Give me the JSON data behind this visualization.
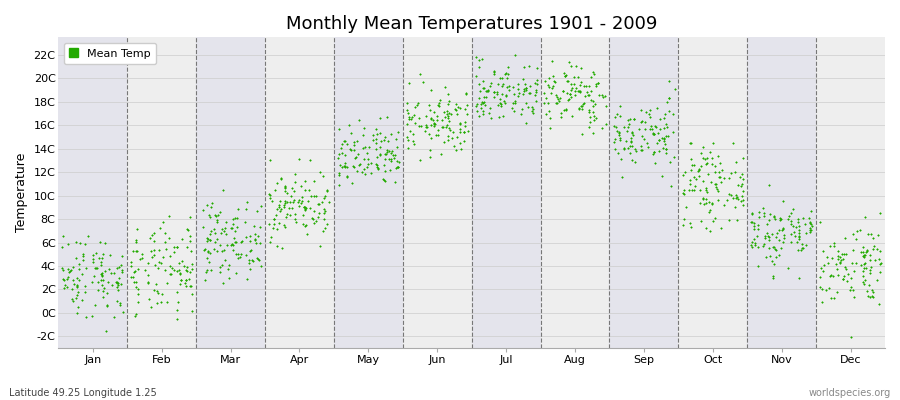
{
  "title": "Monthly Mean Temperatures 1901 - 2009",
  "ylabel": "Temperature",
  "xlabel_bottom_left": "Latitude 49.25 Longitude 1.25",
  "xlabel_bottom_right": "worldspecies.org",
  "legend_label": "Mean Temp",
  "dot_color": "#22aa00",
  "stripe_colors": [
    "#e4e4ec",
    "#eeeeee"
  ],
  "yticks": [
    -2,
    0,
    2,
    4,
    6,
    8,
    10,
    12,
    14,
    16,
    18,
    20,
    22
  ],
  "ytick_labels": [
    "-2C",
    "0C",
    "2C",
    "4C",
    "6C",
    "8C",
    "10C",
    "12C",
    "14C",
    "16C",
    "18C",
    "20C",
    "22C"
  ],
  "ylim": [
    -3.0,
    23.5
  ],
  "months": [
    "Jan",
    "Feb",
    "Mar",
    "Apr",
    "May",
    "Jun",
    "Jul",
    "Aug",
    "Sep",
    "Oct",
    "Nov",
    "Dec"
  ],
  "month_means": [
    3.2,
    3.5,
    6.2,
    9.2,
    13.2,
    16.2,
    18.8,
    18.5,
    15.2,
    10.8,
    6.8,
    4.2
  ],
  "month_stds": [
    1.8,
    2.0,
    1.6,
    1.5,
    1.4,
    1.4,
    1.3,
    1.4,
    1.5,
    1.6,
    1.5,
    1.8
  ],
  "month_mins": [
    -2.5,
    -2.0,
    1.0,
    5.5,
    9.0,
    12.5,
    15.0,
    14.5,
    10.5,
    6.5,
    3.0,
    -2.8
  ],
  "month_maxs": [
    7.5,
    8.5,
    10.5,
    13.5,
    17.5,
    20.5,
    22.0,
    21.5,
    19.8,
    14.5,
    11.0,
    8.5
  ],
  "n_points": 109,
  "seed": 42,
  "figsize": [
    9.0,
    4.0
  ],
  "dpi": 100,
  "title_fontsize": 13,
  "axis_fontsize": 8,
  "ylabel_fontsize": 9,
  "marker_size": 4,
  "legend_fontsize": 8
}
